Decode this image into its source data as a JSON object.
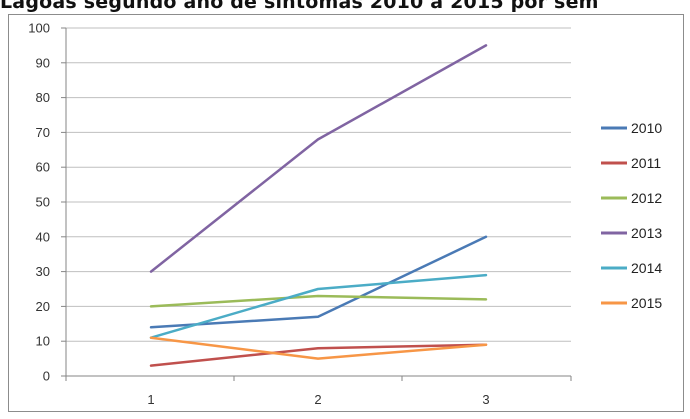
{
  "title": "Lagoas segundo ano de sintomas 2010 a 2015 por sem",
  "chart_data": {
    "type": "line",
    "x": [
      1,
      2,
      3
    ],
    "ylim": [
      0,
      100
    ],
    "yticks": [
      0,
      10,
      20,
      30,
      40,
      50,
      60,
      70,
      80,
      90,
      100
    ],
    "grid": true,
    "legend_position": "right",
    "series": [
      {
        "name": "2010",
        "values": [
          14,
          17,
          40
        ],
        "color": "#4a7ab5"
      },
      {
        "name": "2011",
        "values": [
          3,
          8,
          9
        ],
        "color": "#c0504d"
      },
      {
        "name": "2012",
        "values": [
          20,
          23,
          22
        ],
        "color": "#9bbb59"
      },
      {
        "name": "2013",
        "values": [
          30,
          68,
          95
        ],
        "color": "#8064a2"
      },
      {
        "name": "2014",
        "values": [
          11,
          25,
          29
        ],
        "color": "#4bacc6"
      },
      {
        "name": "2015",
        "values": [
          11,
          5,
          9
        ],
        "color": "#f79646"
      }
    ]
  }
}
